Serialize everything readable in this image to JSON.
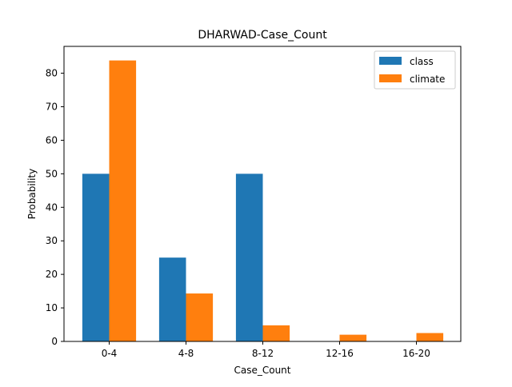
{
  "chart_data": {
    "type": "bar",
    "title": "DHARWAD-Case_Count",
    "xlabel": "Case_Count",
    "ylabel": "Probability",
    "categories": [
      "0-4",
      "4-8",
      "8-12",
      "12-16",
      "16-20"
    ],
    "series": [
      {
        "name": "class",
        "color": "#1f77b4",
        "values": [
          50,
          25,
          50,
          0,
          0
        ]
      },
      {
        "name": "climate",
        "color": "#ff7f0e",
        "values": [
          83.8,
          14.3,
          4.8,
          2.0,
          2.5
        ]
      }
    ],
    "ylim": [
      0,
      88
    ],
    "yticks": [
      0,
      10,
      20,
      30,
      40,
      50,
      60,
      70,
      80
    ],
    "grid": false,
    "legend_position": "top-right"
  }
}
